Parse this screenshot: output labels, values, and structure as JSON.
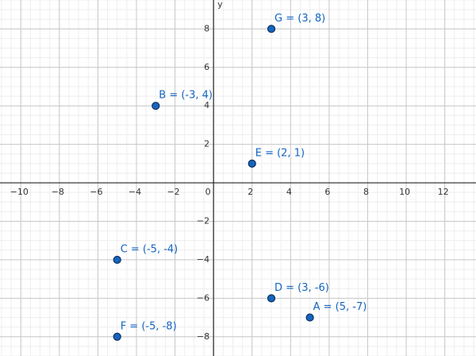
{
  "chart_data": {
    "type": "scatter",
    "y_label": "y",
    "x": [
      5,
      -3,
      -5,
      3,
      2,
      -5,
      3
    ],
    "values": [
      -7,
      4,
      -4,
      -6,
      1,
      -8,
      8
    ],
    "labels": [
      "A = (5, -7)",
      "B = (-3, 4)",
      "C = (-5, -4)",
      "D = (3, -6)",
      "E = (2, 1)",
      "F = (-5, -8)",
      "G = (3, 8)"
    ],
    "color": "#1565c0",
    "xlim": [
      -11.08,
      13.62
    ],
    "ylim": [
      -9,
      9.5
    ],
    "xticks": [
      {
        "value": -10,
        "label": "−10"
      },
      {
        "value": -8,
        "label": "−8"
      },
      {
        "value": -6,
        "label": "−6"
      },
      {
        "value": -4,
        "label": "−4"
      },
      {
        "value": -2,
        "label": "−2"
      },
      0,
      2,
      4,
      6,
      8,
      10,
      12
    ],
    "yticks": [
      {
        "value": -8,
        "label": "−8"
      },
      {
        "value": -6,
        "label": "−6"
      },
      {
        "value": -4,
        "label": "−4"
      },
      {
        "value": -2,
        "label": "−2"
      },
      2,
      4,
      6,
      8
    ],
    "grid": true
  }
}
